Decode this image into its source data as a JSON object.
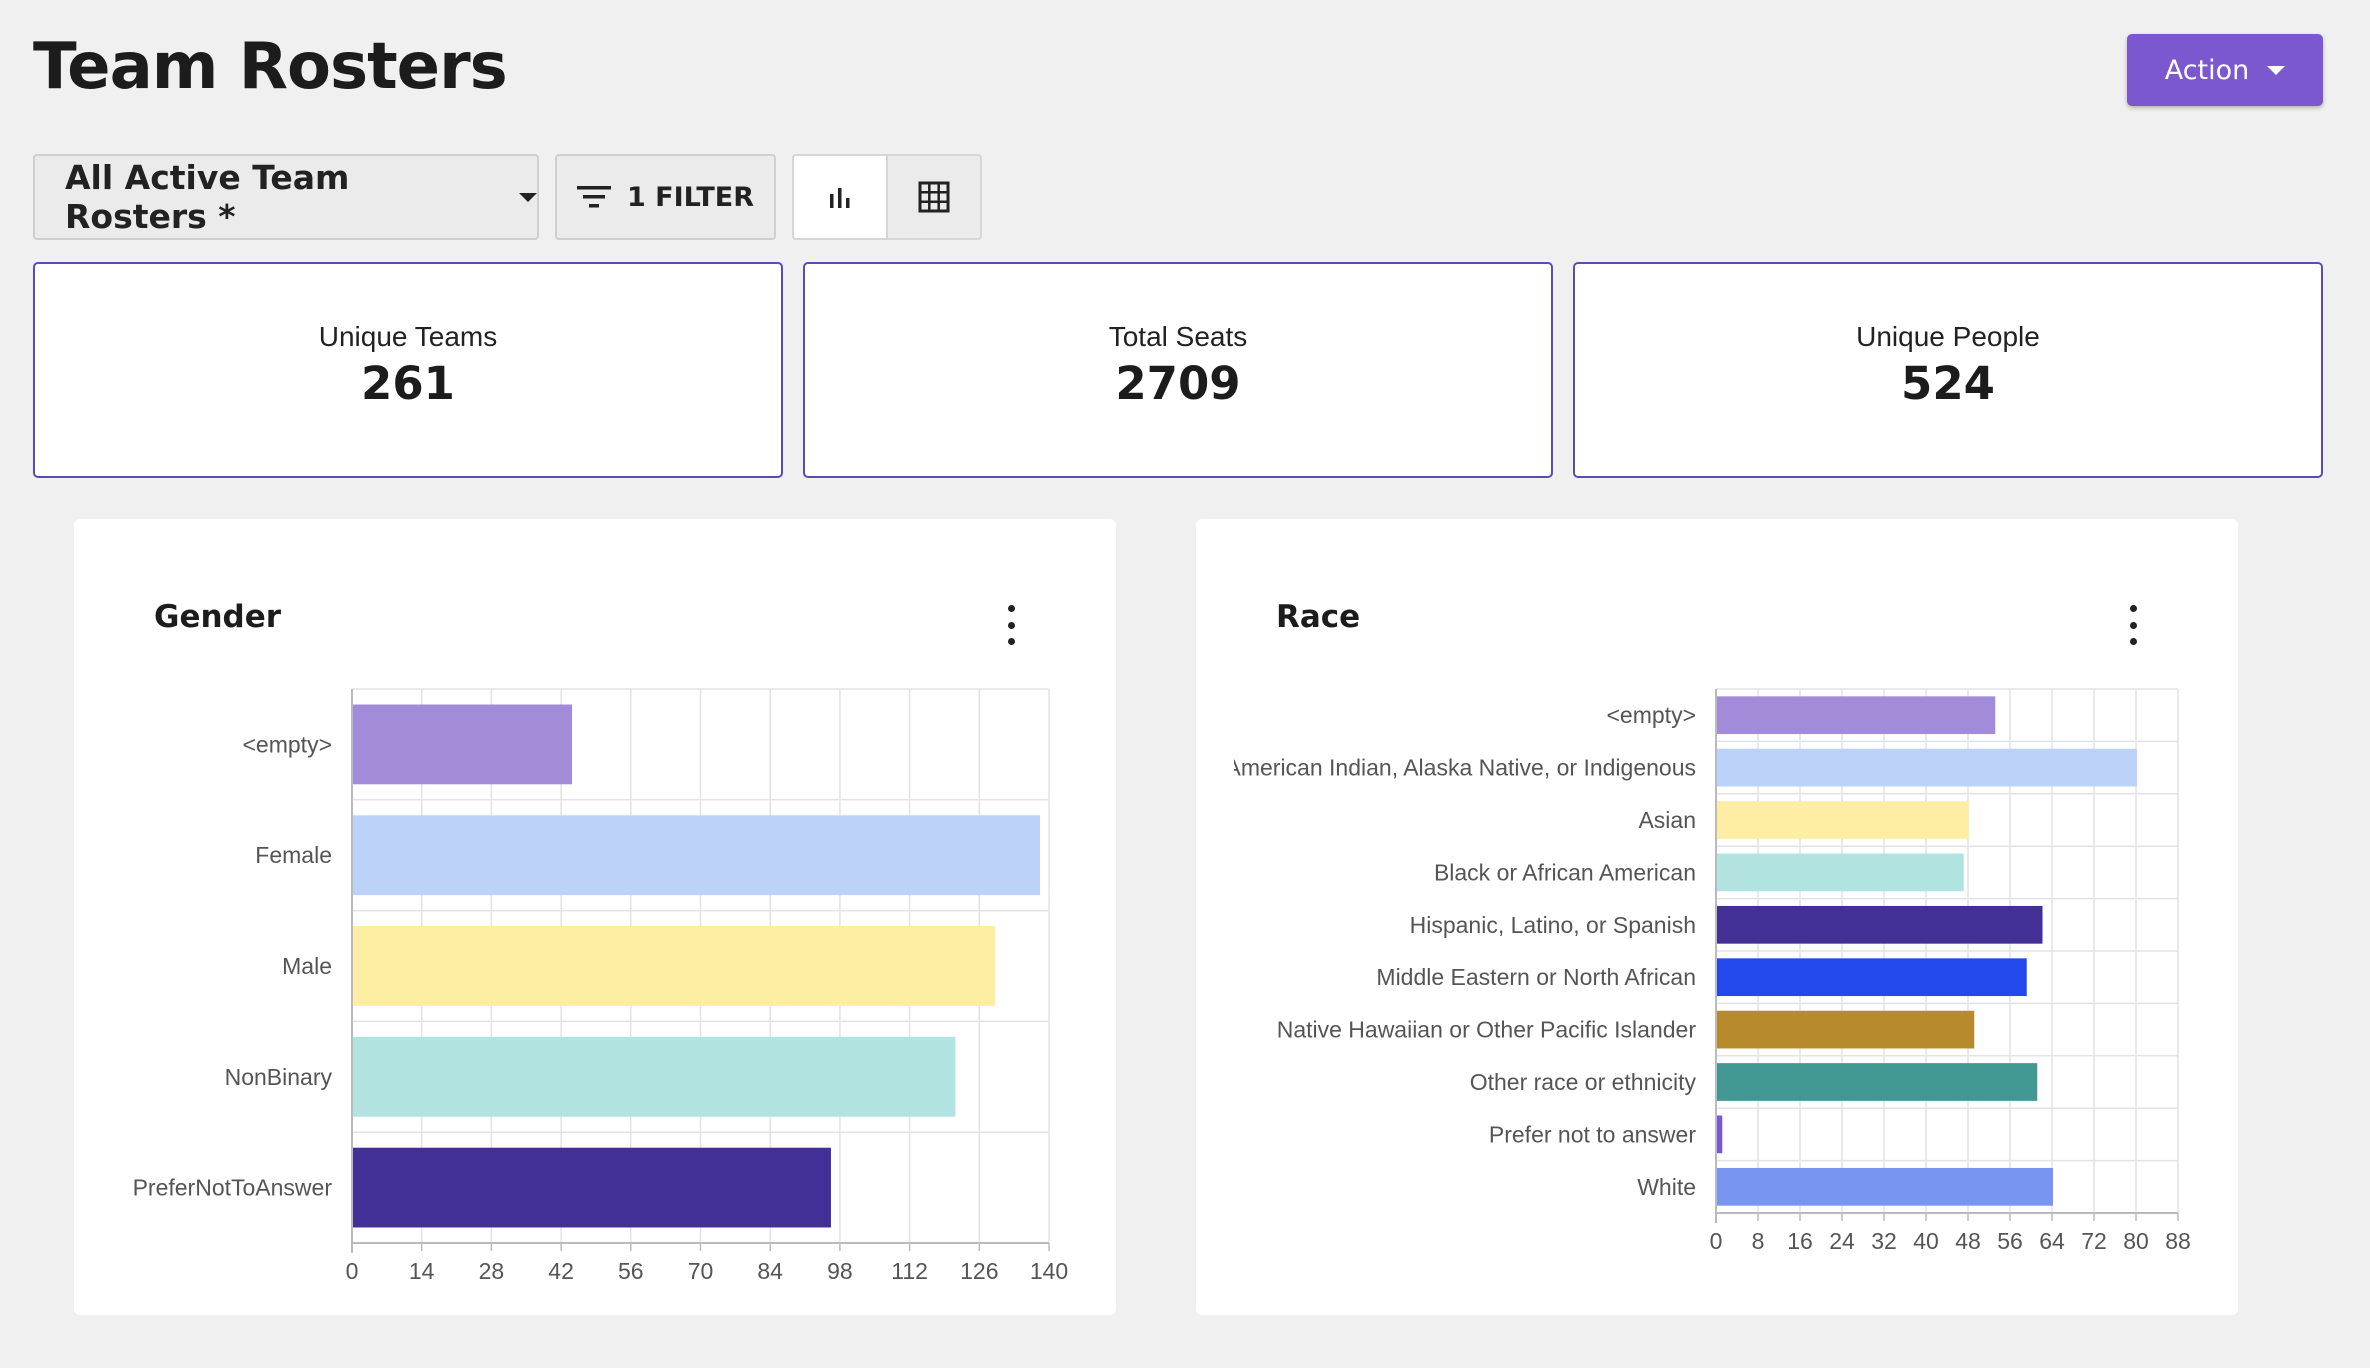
{
  "header": {
    "title": "Team Rosters",
    "action_label": "Action"
  },
  "toolbar": {
    "roster_select_label": "All Active Team Rosters *",
    "filter_label": "1 FILTER",
    "view_options": [
      "chart-view",
      "table-view"
    ],
    "active_view": "chart-view"
  },
  "stats": [
    {
      "label": "Unique Teams",
      "value": "261"
    },
    {
      "label": "Total Seats",
      "value": "2709"
    },
    {
      "label": "Unique People",
      "value": "524"
    }
  ],
  "colors": {
    "accent": "#7b57d0",
    "card_border": "#5e4ab5"
  },
  "chart_data": [
    {
      "type": "bar",
      "orientation": "horizontal",
      "title": "Gender",
      "categories": [
        "<empty>",
        "Female",
        "Male",
        "NonBinary",
        "PreferNotToAnswer"
      ],
      "values": [
        44,
        138,
        129,
        121,
        96
      ],
      "colors": [
        "#a28bd9",
        "#bcd2f8",
        "#fdeea3",
        "#b1e3e1",
        "#442f96"
      ],
      "xlim": [
        0,
        140
      ],
      "xticks": [
        "0",
        "14",
        "28",
        "42",
        "56",
        "70",
        "84",
        "98",
        "112",
        "126",
        "140"
      ],
      "grid": true
    },
    {
      "type": "bar",
      "orientation": "horizontal",
      "title": "Race",
      "categories": [
        "<empty>",
        "American Indian, Alaska Native, or Indigenous",
        "Asian",
        "Black or African American",
        "Hispanic, Latino, or Spanish",
        "Middle Eastern or North African",
        "Native Hawaiian or Other Pacific Islander",
        "Other race or ethnicity",
        "Prefer not to answer",
        "White"
      ],
      "values": [
        53,
        80,
        48,
        47,
        62,
        59,
        49,
        61,
        1,
        64
      ],
      "colors": [
        "#a28bd9",
        "#bcd2f8",
        "#fdeea3",
        "#b1e3e1",
        "#442f96",
        "#2349ec",
        "#b88a2e",
        "#419892",
        "#7b57d0",
        "#7895f2"
      ],
      "xlim": [
        0,
        88
      ],
      "xticks": [
        "0",
        "8",
        "16",
        "24",
        "32",
        "40",
        "48",
        "56",
        "64",
        "72",
        "80",
        "88"
      ],
      "grid": true
    }
  ]
}
